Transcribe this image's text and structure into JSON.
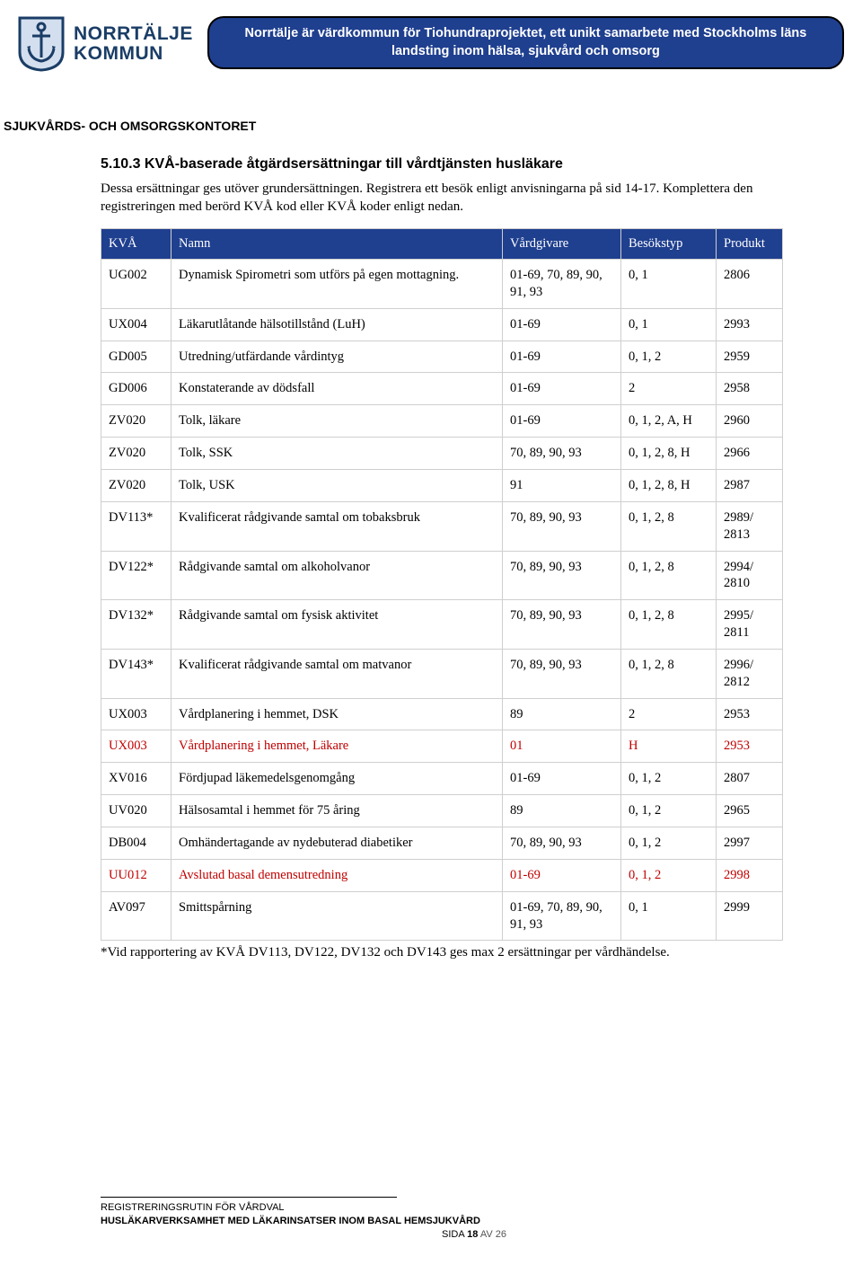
{
  "header": {
    "logo_line1": "NORRTÄLJE",
    "logo_line2": "KOMMUN",
    "banner": "Norrtälje är värdkommun för Tiohundraprojektet, ett unikt samarbete med Stockholms läns landsting inom hälsa, sjukvård och omsorg",
    "shield_stroke": "#1a3d66",
    "shield_fill": "#d3dfef"
  },
  "dept": "SJUKVÅRDS- OCH OMSORGSKONTORET",
  "section_title": "5.10.3  KVÅ-baserade åtgärdsersättningar till vårdtjänsten husläkare",
  "intro": "Dessa ersättningar ges utöver grundersättningen. Registrera ett besök enligt anvisningarna på sid 14-17. Komplettera den registreringen med berörd KVÅ kod eller KVÅ koder enligt nedan.",
  "table": {
    "columns": [
      "KVÅ",
      "Namn",
      "Vårdgivare",
      "Besökstyp",
      "Produkt"
    ],
    "rows": [
      {
        "kva": "UG002",
        "namn": "Dynamisk Spirometri som utförs på egen mottagning.",
        "vg": "01-69, 70, 89, 90, 91, 93",
        "bt": "0, 1",
        "pr": "2806",
        "red": false
      },
      {
        "kva": "UX004",
        "namn": "Läkarutlåtande hälsotillstånd (LuH)",
        "vg": "01-69",
        "bt": "0, 1",
        "pr": "2993",
        "red": false
      },
      {
        "kva": "GD005",
        "namn": "Utredning/utfärdande vårdintyg",
        "vg": "01-69",
        "bt": "0, 1, 2",
        "pr": "2959",
        "red": false
      },
      {
        "kva": "GD006",
        "namn": "Konstaterande av dödsfall",
        "vg": "01-69",
        "bt": "2",
        "pr": "2958",
        "red": false
      },
      {
        "kva": "ZV020",
        "namn": "Tolk, läkare",
        "vg": "01-69",
        "bt": "0, 1, 2, A, H",
        "pr": "2960",
        "red": false
      },
      {
        "kva": "ZV020",
        "namn": "Tolk, SSK",
        "vg": "70, 89, 90, 93",
        "bt": "0, 1, 2, 8, H",
        "pr": "2966",
        "red": false
      },
      {
        "kva": "ZV020",
        "namn": "Tolk, USK",
        "vg": "91",
        "bt": "0, 1, 2, 8, H",
        "pr": "2987",
        "red": false
      },
      {
        "kva": "DV113*",
        "namn": "Kvalificerat rådgivande samtal om tobaksbruk",
        "vg": "70, 89, 90, 93",
        "bt": "0, 1, 2, 8",
        "pr": "2989/ 2813",
        "red": false
      },
      {
        "kva": "DV122*",
        "namn": "Rådgivande samtal om alkoholvanor",
        "vg": "70, 89, 90, 93",
        "bt": "0, 1, 2, 8",
        "pr": "2994/ 2810",
        "red": false
      },
      {
        "kva": "DV132*",
        "namn": "Rådgivande samtal om fysisk aktivitet",
        "vg": "70, 89, 90, 93",
        "bt": "0, 1, 2, 8",
        "pr": "2995/ 2811",
        "red": false
      },
      {
        "kva": "DV143*",
        "namn": "Kvalificerat rådgivande samtal om matvanor",
        "vg": "70, 89, 90, 93",
        "bt": "0, 1, 2, 8",
        "pr": "2996/ 2812",
        "red": false
      },
      {
        "kva": "UX003",
        "namn": "Vårdplanering i hemmet, DSK",
        "vg": "89",
        "bt": "2",
        "pr": "2953",
        "red": false
      },
      {
        "kva": "UX003",
        "namn": "Vårdplanering i hemmet, Läkare",
        "vg": "01",
        "bt": "H",
        "pr": "2953",
        "red": true
      },
      {
        "kva": "XV016",
        "namn": "Fördjupad läkemedelsgenomgång",
        "vg": "01-69",
        "bt": "0, 1, 2",
        "pr": "2807",
        "red": false
      },
      {
        "kva": "UV020",
        "namn": "Hälsosamtal i hemmet för 75 åring",
        "vg": "89",
        "bt": "0, 1, 2",
        "pr": "2965",
        "red": false
      },
      {
        "kva": "DB004",
        "namn": "Omhändertagande av nydebuterad diabetiker",
        "vg": "70, 89, 90, 93",
        "bt": "0, 1, 2",
        "pr": "2997",
        "red": false
      },
      {
        "kva": "UU012",
        "namn": "Avslutad basal demensutredning",
        "vg": "01-69",
        "bt": "0, 1, 2",
        "pr": "2998",
        "red": true
      },
      {
        "kva": "AV097",
        "namn": "Smittspårning",
        "vg": "01-69, 70, 89, 90, 91, 93",
        "bt": "0, 1",
        "pr": "2999",
        "red": false
      }
    ]
  },
  "footnote": "*Vid rapportering av KVÅ DV113, DV122, DV132 och DV143 ges max 2 ersättningar per vårdhändelse.",
  "footer": {
    "line1": "REGISTRERINGSRUTIN FÖR VÅRDVAL",
    "line2": "HUSLÄKARVERKSAMHET MED LÄKARINSATSER INOM BASAL HEMSJUKVÅRD",
    "page_label_prefix": "SIDA ",
    "page_current": "18",
    "page_label_mid": " AV ",
    "page_total": "26"
  },
  "colors": {
    "brand_blue": "#1f3f8f",
    "logo_blue": "#1a3d66",
    "border_gray": "#cfcfcf",
    "red": "#c00000"
  }
}
